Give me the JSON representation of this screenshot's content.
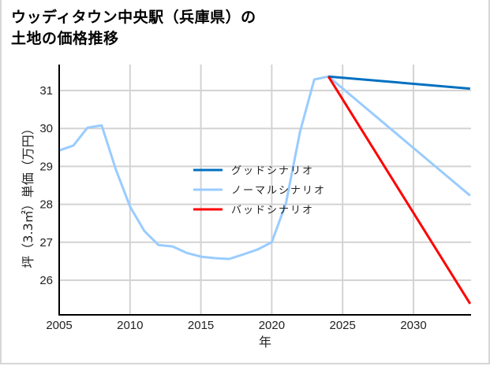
{
  "title_line1": "ウッディタウン中央駅（兵庫県）の",
  "title_line2": "土地の価格推移",
  "chart_data": {
    "type": "line",
    "title": "ウッディタウン中央駅（兵庫県）の土地の価格推移",
    "xlabel": "年",
    "ylabel": "坪（3.3㎡）単価（万円）",
    "xlim": [
      2005,
      2034
    ],
    "ylim": [
      25.1,
      31.7
    ],
    "x_ticks": [
      "2005",
      "2010",
      "2015",
      "2020",
      "2025",
      "2030"
    ],
    "y_ticks": [
      "26",
      "27",
      "28",
      "29",
      "30",
      "31"
    ],
    "grid": true,
    "legend_position": "center",
    "series": [
      {
        "name": "グッドシナリオ",
        "color": "#0070c0",
        "x": [
          2024,
          2034
        ],
        "values": [
          31.37,
          31.05
        ]
      },
      {
        "name": "ノーマルシナリオ",
        "color": "#99ccff",
        "x": [
          2005,
          2006,
          2007,
          2008,
          2009,
          2010,
          2011,
          2012,
          2013,
          2014,
          2015,
          2016,
          2017,
          2018,
          2019,
          2020,
          2021,
          2022,
          2023,
          2024,
          2034
        ],
        "values": [
          29.42,
          29.55,
          30.02,
          30.08,
          28.92,
          27.94,
          27.3,
          26.93,
          26.89,
          26.72,
          26.62,
          26.58,
          26.56,
          26.68,
          26.81,
          27.0,
          28.03,
          29.92,
          31.29,
          31.37,
          28.23
        ]
      },
      {
        "name": "バッドシナリオ",
        "color": "#ff0000",
        "x": [
          2024,
          2034
        ],
        "values": [
          31.37,
          25.38
        ]
      }
    ]
  }
}
